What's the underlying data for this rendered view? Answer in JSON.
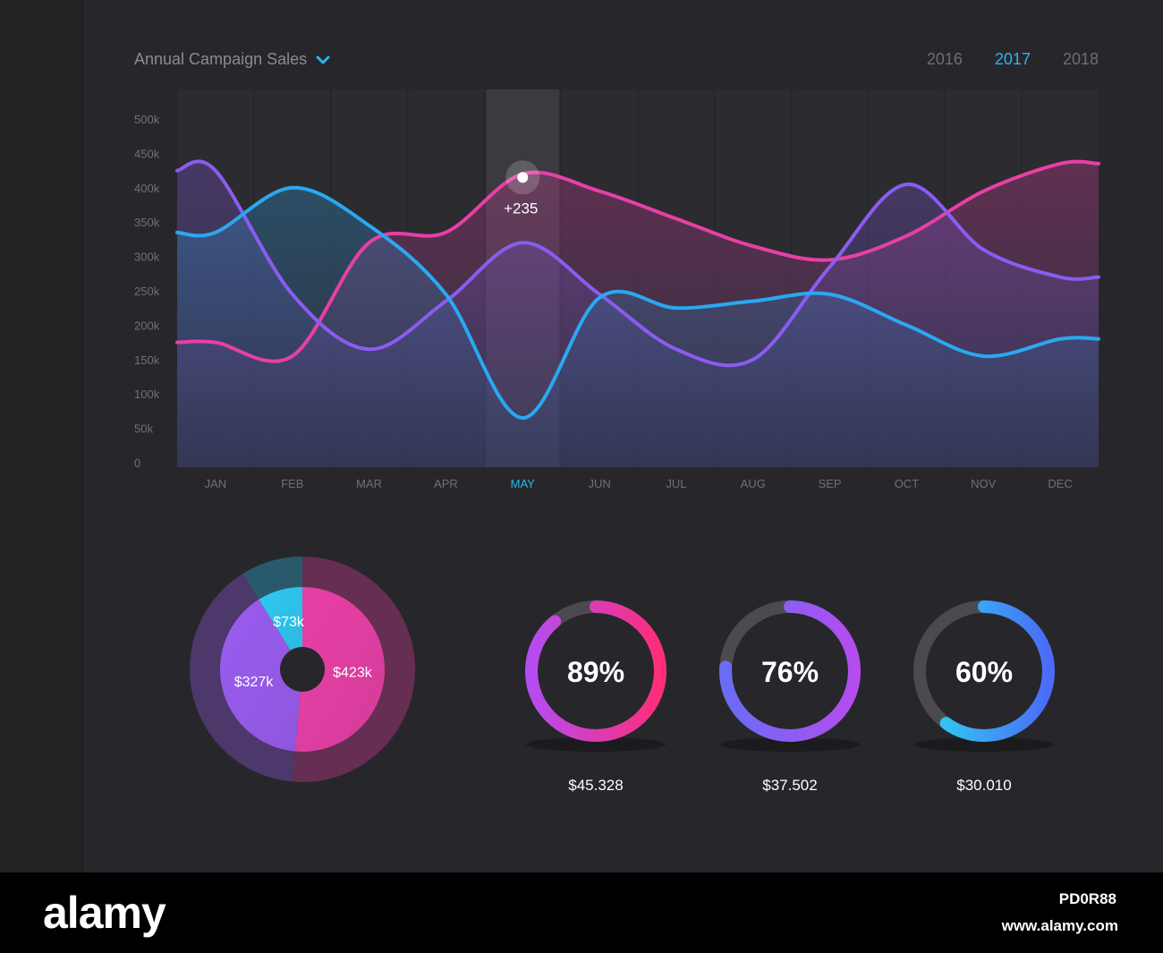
{
  "header": {
    "title": "Annual Campaign Sales",
    "years": [
      "2016",
      "2017",
      "2018"
    ],
    "active_year": "2017"
  },
  "icons": {
    "dropdown": "chevron-down-icon"
  },
  "colors": {
    "background": "#27272b",
    "accent": "#2bb6ee",
    "pink": "#e83fa6",
    "purple": "#8a5cf0",
    "blue": "#2aa8f0",
    "cyan": "#2ed3f0",
    "magenta": "#e64cd4"
  },
  "chart_data": [
    {
      "type": "line",
      "categories": [
        "JAN",
        "FEB",
        "MAR",
        "APR",
        "MAY",
        "JUN",
        "JUL",
        "AUG",
        "SEP",
        "OCT",
        "NOV",
        "DEC"
      ],
      "y_ticks": [
        "0",
        "50k",
        "100k",
        "150k",
        "200k",
        "250k",
        "300k",
        "350k",
        "400k",
        "450k",
        "500k"
      ],
      "ylim": [
        0,
        500
      ],
      "highlighted_category": "MAY",
      "series": [
        {
          "color": "#e83fa6",
          "values": [
            175,
            155,
            320,
            335,
            420,
            395,
            355,
            315,
            295,
            330,
            395,
            435
          ]
        },
        {
          "color": "#8a5cf0",
          "values": [
            425,
            245,
            165,
            235,
            320,
            245,
            165,
            150,
            285,
            405,
            310,
            270
          ]
        },
        {
          "color": "#2aa8f0",
          "values": [
            335,
            400,
            345,
            245,
            65,
            240,
            225,
            235,
            245,
            200,
            155,
            180
          ]
        }
      ],
      "tooltip": {
        "category": "MAY",
        "value": 415,
        "label": "+235"
      }
    },
    {
      "type": "pie",
      "slices": [
        {
          "label": "$423k",
          "value": 423,
          "color": "#e83fa6"
        },
        {
          "label": "$327k",
          "value": 327,
          "color": "#9a5cf0"
        },
        {
          "label": "$73k",
          "value": 73,
          "color": "#2ec8f2"
        }
      ]
    },
    {
      "type": "gauge",
      "items": [
        {
          "percent": 89,
          "label": "89%",
          "value": "$45.328",
          "colors": [
            "#b54cf0",
            "#ff2d7a"
          ]
        },
        {
          "percent": 76,
          "label": "76%",
          "value": "$37.502",
          "colors": [
            "#6a6cf6",
            "#b44cf0"
          ]
        },
        {
          "percent": 60,
          "label": "60%",
          "value": "$30.010",
          "colors": [
            "#2ed6ef",
            "#4a6cf8"
          ]
        }
      ]
    }
  ],
  "footer": {
    "brand": "alamy",
    "image_id": "PD0R88",
    "url": "www.alamy.com"
  }
}
